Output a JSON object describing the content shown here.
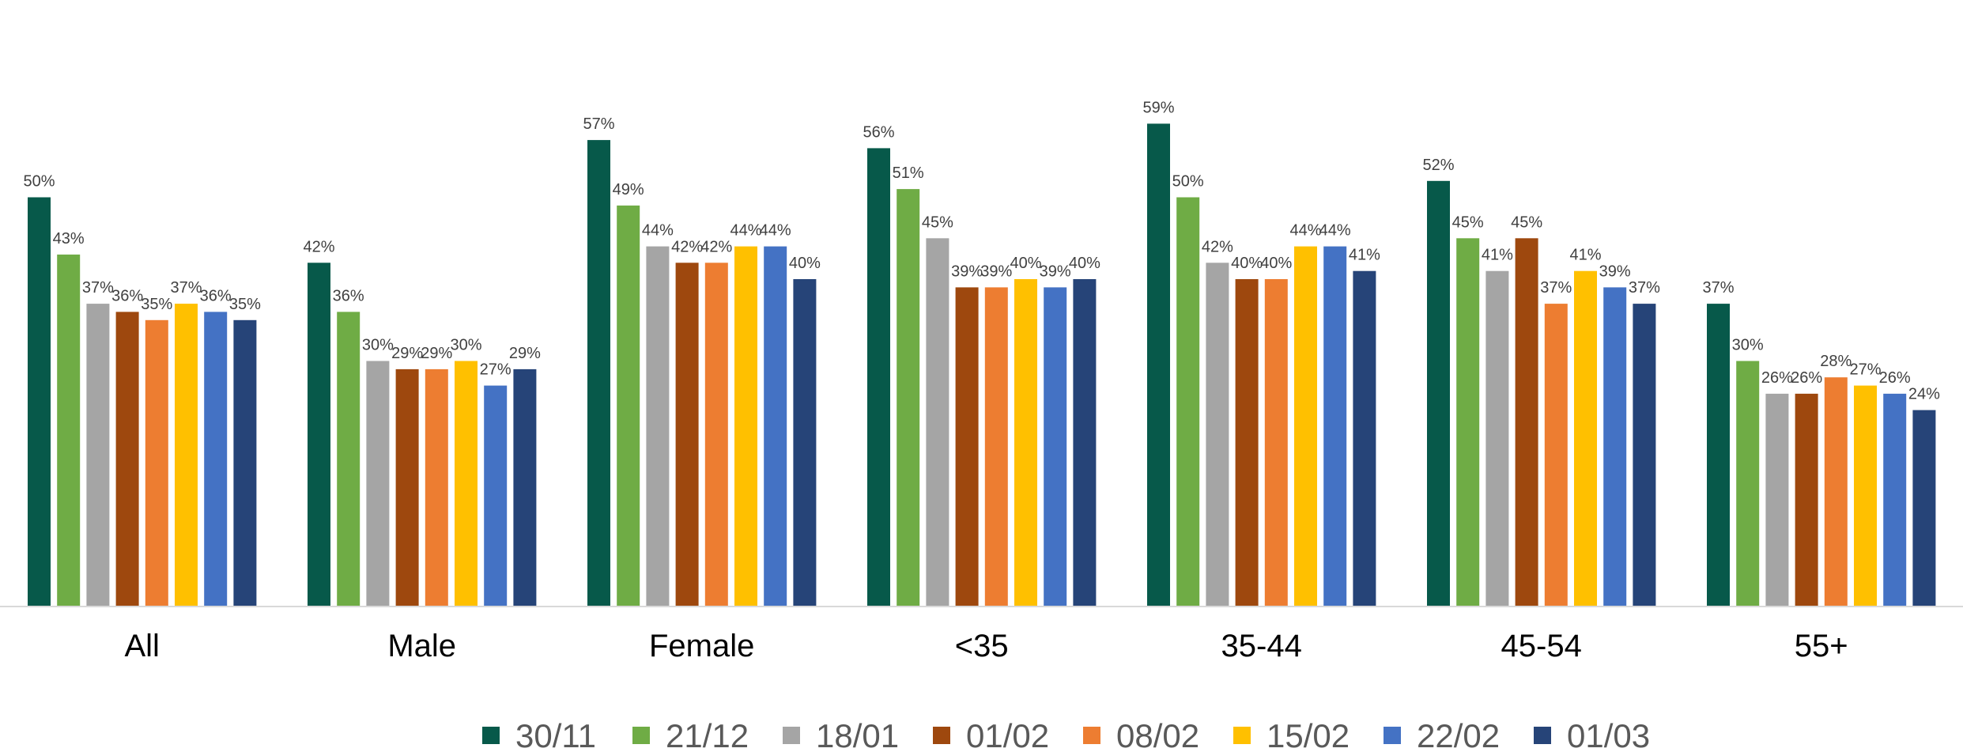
{
  "chart_data": {
    "type": "bar",
    "categories": [
      "All",
      "Male",
      "Female",
      "<35",
      "35-44",
      "45-54",
      "55+"
    ],
    "series": [
      {
        "name": "30/11",
        "color": "#07594a",
        "values": [
          50,
          42,
          57,
          56,
          59,
          52,
          37
        ]
      },
      {
        "name": "21/12",
        "color": "#6fac45",
        "values": [
          43,
          36,
          49,
          51,
          50,
          45,
          30
        ]
      },
      {
        "name": "18/01",
        "color": "#a5a5a5",
        "values": [
          37,
          30,
          44,
          45,
          42,
          41,
          26
        ]
      },
      {
        "name": "01/02",
        "color": "#9e480e",
        "values": [
          36,
          29,
          42,
          39,
          40,
          45,
          26
        ]
      },
      {
        "name": "08/02",
        "color": "#ed7d31",
        "values": [
          35,
          29,
          42,
          39,
          40,
          37,
          28
        ]
      },
      {
        "name": "15/02",
        "color": "#ffc000",
        "values": [
          37,
          30,
          44,
          40,
          44,
          41,
          27
        ]
      },
      {
        "name": "22/02",
        "color": "#4472c4",
        "values": [
          36,
          27,
          44,
          39,
          44,
          39,
          26
        ]
      },
      {
        "name": "01/03",
        "color": "#264478",
        "values": [
          35,
          29,
          40,
          40,
          41,
          37,
          24
        ]
      }
    ],
    "value_suffix": "%",
    "ylim": [
      0,
      62
    ],
    "grid": false,
    "legend_position": "bottom"
  }
}
